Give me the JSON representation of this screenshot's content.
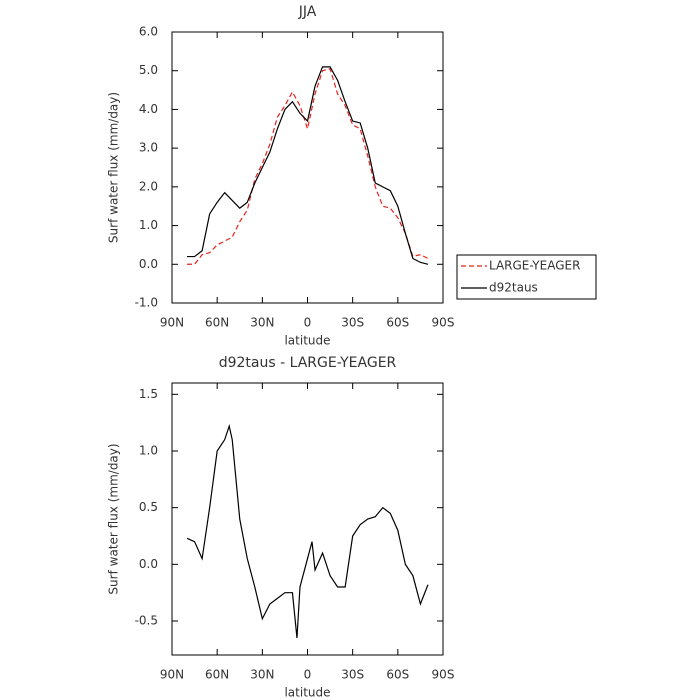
{
  "chart_data": [
    {
      "type": "line",
      "title": "JJA",
      "x_label": "latitude",
      "y_label": "Surf water flux (mm/day)",
      "x": [
        80,
        75,
        70,
        65,
        60,
        55,
        50,
        45,
        40,
        35,
        30,
        25,
        20,
        15,
        10,
        5,
        0,
        -5,
        -10,
        -15,
        -20,
        -25,
        -30,
        -35,
        -40,
        -45,
        -50,
        -55,
        -60,
        -65,
        -70,
        -75,
        -80
      ],
      "series": [
        {
          "name": "LARGE-YEAGER",
          "color": "#e8231c",
          "dash": true,
          "values": [
            0.0,
            0.0,
            0.25,
            0.3,
            0.5,
            0.6,
            0.7,
            1.1,
            1.4,
            2.2,
            2.6,
            3.1,
            3.8,
            4.1,
            4.45,
            4.1,
            3.5,
            4.4,
            5.0,
            5.05,
            4.4,
            4.1,
            3.6,
            3.5,
            2.8,
            2.0,
            1.5,
            1.45,
            1.2,
            0.8,
            0.2,
            0.25,
            0.15
          ]
        },
        {
          "name": "d92taus",
          "color": "#000000",
          "dash": false,
          "values": [
            0.2,
            0.2,
            0.35,
            1.3,
            1.6,
            1.85,
            1.65,
            1.45,
            1.6,
            2.1,
            2.5,
            2.9,
            3.5,
            4.0,
            4.2,
            3.9,
            3.7,
            4.6,
            5.1,
            5.1,
            4.75,
            4.2,
            3.7,
            3.65,
            3.0,
            2.1,
            2.0,
            1.9,
            1.5,
            0.8,
            0.15,
            0.05,
            0.0
          ]
        }
      ],
      "xlim": [
        90,
        -90
      ],
      "xticks": [
        {
          "value": 90,
          "label": "90N"
        },
        {
          "value": 60,
          "label": "60N"
        },
        {
          "value": 30,
          "label": "30N"
        },
        0,
        {
          "value": -30,
          "label": "30S"
        },
        {
          "value": -60,
          "label": "60S"
        },
        {
          "value": -90,
          "label": "90S"
        }
      ],
      "ylim": [
        -1,
        6
      ],
      "yticks": [
        {
          "value": -1,
          "label": "-1.0"
        },
        {
          "value": 0,
          "label": "0.0"
        },
        {
          "value": 1,
          "label": "1.0"
        },
        {
          "value": 2,
          "label": "2.0"
        },
        {
          "value": 3,
          "label": "3.0"
        },
        {
          "value": 4,
          "label": "4.0"
        },
        {
          "value": 5,
          "label": "5.0"
        },
        {
          "value": 6,
          "label": "6.0"
        }
      ],
      "legend": "right"
    },
    {
      "type": "line",
      "title": "d92taus - LARGE-YEAGER",
      "x_label": "latitude",
      "y_label": "Surf water flux (mm/day)",
      "x": [
        80,
        75,
        70,
        65,
        60,
        55,
        52,
        50,
        45,
        40,
        35,
        30,
        25,
        20,
        15,
        10,
        7,
        5,
        0,
        -3,
        -5,
        -10,
        -15,
        -20,
        -25,
        -30,
        -35,
        -40,
        -45,
        -50,
        -55,
        -60,
        -65,
        -70,
        -75,
        -80
      ],
      "values": [
        0.23,
        0.2,
        0.05,
        0.5,
        1.0,
        1.1,
        1.22,
        1.1,
        0.4,
        0.05,
        -0.2,
        -0.48,
        -0.35,
        -0.3,
        -0.25,
        -0.25,
        -0.65,
        -0.2,
        0.05,
        0.2,
        -0.05,
        0.1,
        -0.1,
        -0.2,
        -0.2,
        0.25,
        0.35,
        0.4,
        0.42,
        0.5,
        0.45,
        0.3,
        0.0,
        -0.1,
        -0.35,
        -0.18
      ],
      "color": "#000000",
      "xlim": [
        90,
        -90
      ],
      "xticks": [
        {
          "value": 90,
          "label": "90N"
        },
        {
          "value": 60,
          "label": "60N"
        },
        {
          "value": 30,
          "label": "30N"
        },
        0,
        {
          "value": -30,
          "label": "30S"
        },
        {
          "value": -60,
          "label": "60S"
        },
        {
          "value": -90,
          "label": "90S"
        }
      ],
      "ylim": [
        -0.8,
        1.6
      ],
      "yticks": [
        -0.5,
        {
          "value": 0,
          "label": "0.0"
        },
        0.5,
        {
          "value": 1,
          "label": "1.0"
        },
        1.5
      ]
    }
  ]
}
